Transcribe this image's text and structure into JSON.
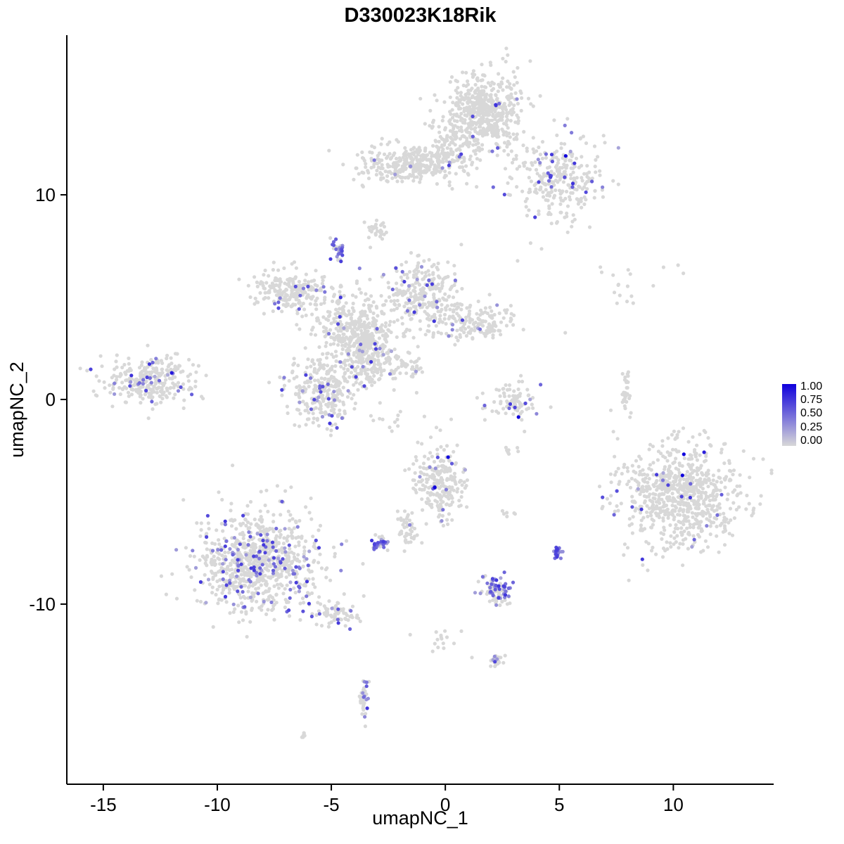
{
  "title": "D330023K18Rik",
  "axes": {
    "x": {
      "label": "umapNC_1",
      "range": [
        -16.6,
        14.4
      ],
      "ticks": [
        -15,
        -10,
        -5,
        0,
        5,
        10
      ]
    },
    "y": {
      "label": "umapNC_2",
      "range": [
        -18.8,
        17.8
      ],
      "ticks": [
        -10,
        0,
        10
      ]
    }
  },
  "legend": {
    "tick_labels": [
      "1.00",
      "0.75",
      "0.50",
      "0.25",
      "0.00"
    ],
    "color_high": "#0f00dc",
    "color_low": "#d8d8d8"
  },
  "style": {
    "background": "#ffffff",
    "base_point_color": "#d8d8d8",
    "point_radius": 2.6,
    "axis_color": "#000000"
  },
  "chart_data": {
    "type": "scatter",
    "title": "D330023K18Rik",
    "xlabel": "umapNC_1",
    "ylabel": "umapNC_2",
    "xlim": [
      -16.6,
      14.4
    ],
    "ylim": [
      -18.8,
      17.8
    ],
    "legend_scale": {
      "min": 0.0,
      "max": 1.0,
      "ticks": [
        0.0,
        0.25,
        0.5,
        0.75,
        1.0
      ]
    },
    "description": "UMAP feature plot; gray cells with sparse purple/blue expressing cells; clusters given as center, sd, count, expressing-fraction",
    "clusters": [
      {
        "name": "top-main",
        "cx": 1.76,
        "cy": 14.0,
        "sx": 0.85,
        "sy": 0.95,
        "n": 550,
        "ef": 0.02
      },
      {
        "name": "top-arm",
        "cx": -1.35,
        "cy": 11.55,
        "sx": 1.25,
        "sy": 0.45,
        "n": 330,
        "ef": 0.02
      },
      {
        "name": "top-right",
        "cx": 5.0,
        "cy": 10.8,
        "sx": 0.95,
        "sy": 1.05,
        "n": 280,
        "ef": 0.07
      },
      {
        "name": "top-neck",
        "cx": 0.2,
        "cy": 12.6,
        "sx": 0.5,
        "sy": 0.6,
        "n": 80,
        "ef": 0.02
      },
      {
        "name": "dot-cluster-9",
        "cx": -3.09,
        "cy": 8.32,
        "sx": 0.22,
        "sy": 0.25,
        "n": 28,
        "ef": 0.0
      },
      {
        "name": "purple-dot-7",
        "cx": -4.72,
        "cy": 7.32,
        "sx": 0.16,
        "sy": 0.28,
        "n": 30,
        "ef": 0.5
      },
      {
        "name": "central-left",
        "cx": -6.73,
        "cy": 5.36,
        "sx": 0.8,
        "sy": 0.5,
        "n": 220,
        "ef": 0.04
      },
      {
        "name": "central-upper-right",
        "cx": -1.02,
        "cy": 5.09,
        "sx": 0.8,
        "sy": 0.8,
        "n": 260,
        "ef": 0.05
      },
      {
        "name": "central-core",
        "cx": -3.95,
        "cy": 3.37,
        "sx": 0.95,
        "sy": 0.9,
        "n": 400,
        "ef": 0.05
      },
      {
        "name": "central-right-arm",
        "cx": 0.99,
        "cy": 3.71,
        "sx": 1.05,
        "sy": 0.42,
        "n": 170,
        "ef": 0.04
      },
      {
        "name": "central-lower-ring",
        "cx": -5.4,
        "cy": 0.45,
        "sx": 0.72,
        "sy": 0.8,
        "n": 280,
        "ef": 0.06
      },
      {
        "name": "central-connector",
        "cx": -3.49,
        "cy": 1.99,
        "sx": 0.5,
        "sy": 0.7,
        "n": 160,
        "ef": 0.05
      },
      {
        "name": "central-diag-strand",
        "cx": -1.94,
        "cy": 1.58,
        "sx": 0.6,
        "sy": 0.45,
        "n": 60,
        "ef": 0.02
      },
      {
        "name": "left-island",
        "cx": -12.99,
        "cy": 0.96,
        "sx": 1.0,
        "sy": 0.58,
        "n": 300,
        "ef": 0.05
      },
      {
        "name": "mid-small",
        "cx": 2.99,
        "cy": -0.07,
        "sx": 0.6,
        "sy": 0.55,
        "n": 90,
        "ef": 0.05
      },
      {
        "name": "right-string",
        "cx": 7.93,
        "cy": 0.27,
        "sx": 0.1,
        "sy": 0.6,
        "n": 28,
        "ef": 0.0
      },
      {
        "name": "right-island",
        "cx": 10.25,
        "cy": -4.71,
        "sx": 1.3,
        "sy": 1.3,
        "n": 750,
        "ef": 0.03
      },
      {
        "name": "right-sparse-top",
        "cx": 8.4,
        "cy": 6.1,
        "sx": 1.1,
        "sy": 0.35,
        "n": 12,
        "ef": 0.0
      },
      {
        "name": "tiny-8-5",
        "cx": 7.99,
        "cy": 4.91,
        "sx": 0.3,
        "sy": 0.15,
        "n": 6,
        "ef": 0.0
      },
      {
        "name": "mid-bottom",
        "cx": -0.25,
        "cy": -4.02,
        "sx": 0.55,
        "sy": 0.9,
        "n": 230,
        "ef": 0.06
      },
      {
        "name": "mid-bottom-arm",
        "cx": -1.64,
        "cy": -6.32,
        "sx": 0.25,
        "sy": 0.42,
        "n": 45,
        "ef": 0.1
      },
      {
        "name": "purple-spot-small",
        "cx": -2.81,
        "cy": -7.01,
        "sx": 0.18,
        "sy": 0.18,
        "n": 40,
        "ef": 0.55
      },
      {
        "name": "bottom-left-island",
        "cx": -8.18,
        "cy": -7.97,
        "sx": 1.3,
        "sy": 1.2,
        "n": 850,
        "ef": 0.16
      },
      {
        "name": "bottom-left-arm",
        "cx": -4.72,
        "cy": -10.45,
        "sx": 0.45,
        "sy": 0.3,
        "n": 70,
        "ef": 0.12
      },
      {
        "name": "bright-purple-spot",
        "cx": 4.91,
        "cy": -7.46,
        "sx": 0.1,
        "sy": 0.16,
        "n": 26,
        "ef": 0.92
      },
      {
        "name": "purple-cluster-bottom",
        "cx": 2.28,
        "cy": -9.35,
        "sx": 0.32,
        "sy": 0.36,
        "n": 85,
        "ef": 0.45
      },
      {
        "name": "sparse-string-down",
        "cx": -0.09,
        "cy": -11.82,
        "sx": 0.6,
        "sy": 0.35,
        "n": 16,
        "ef": 0.05
      },
      {
        "name": "tiny-2-13",
        "cx": 2.28,
        "cy": -12.78,
        "sx": 0.16,
        "sy": 0.16,
        "n": 22,
        "ef": 0.3
      },
      {
        "name": "bottom-vertical",
        "cx": -3.57,
        "cy": -14.57,
        "sx": 0.1,
        "sy": 0.6,
        "n": 35,
        "ef": 0.25
      },
      {
        "name": "lone-bottom",
        "cx": -6.18,
        "cy": -16.49,
        "sx": 0.16,
        "sy": 0.12,
        "n": 6,
        "ef": 0.0
      },
      {
        "name": "tiny-2-n2",
        "cx": 2.75,
        "cy": -2.47,
        "sx": 0.2,
        "sy": 0.15,
        "n": 8,
        "ef": 0.0
      },
      {
        "name": "tiny-2-n5",
        "cx": 2.75,
        "cy": -5.5,
        "sx": 0.15,
        "sy": 0.12,
        "n": 6,
        "ef": 0.0
      },
      {
        "name": "tiny-n1",
        "cx": -2.4,
        "cy": -1.0,
        "sx": 0.3,
        "sy": 0.3,
        "n": 10,
        "ef": 0.0
      }
    ],
    "highlight_points": [
      [
        5.28,
        11.9,
        1.0
      ],
      [
        3.21,
        -0.86,
        1.0
      ],
      [
        0.12,
        -2.82,
        1.0
      ],
      [
        -0.46,
        -4.3,
        1.0
      ],
      [
        10.46,
        -2.68,
        1.0
      ],
      [
        11.35,
        -2.58,
        0.85
      ],
      [
        10.4,
        -3.71,
        1.0
      ],
      [
        -12.0,
        1.3,
        0.9
      ],
      [
        -11.6,
        0.6,
        0.6
      ]
    ]
  }
}
